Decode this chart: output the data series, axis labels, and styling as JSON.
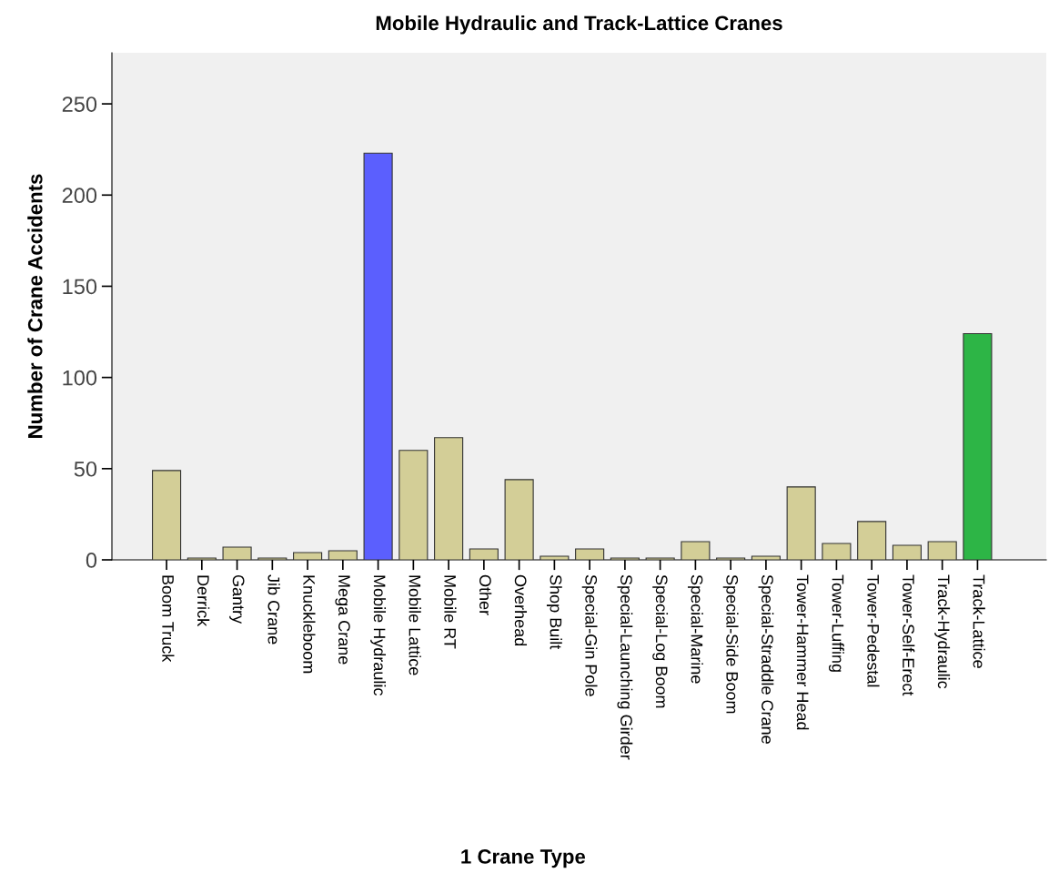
{
  "chart_data": {
    "type": "bar",
    "title": "Mobile Hydraulic and Track-Lattice Cranes",
    "xlabel": "1 Crane Type",
    "ylabel": "Number of Crane Accidents",
    "categories": [
      "Boom Truck",
      "Derrick",
      "Gantry",
      "Jib Crane",
      "Knuckleboom",
      "Mega Crane",
      "Mobile Hydraulic",
      "Mobile Lattice",
      "Mobile RT",
      "Other",
      "Overhead",
      "Shop Built",
      "Special-Gin Pole",
      "Special-Launching Girder",
      "Special-Log Boom",
      "Special-Marine",
      "Special-Side Boom",
      "Special-Straddle Crane",
      "Tower-Hammer Head",
      "Tower-Luffing",
      "Tower-Pedestal",
      "Tower-Self-Erect",
      "Track-Hydraulic",
      "Track-Lattice"
    ],
    "values": [
      49,
      1,
      7,
      1,
      4,
      5,
      223,
      60,
      67,
      6,
      44,
      2,
      6,
      1,
      1,
      10,
      1,
      2,
      40,
      9,
      21,
      8,
      10,
      124
    ],
    "colors": [
      "#d3ce97",
      "#d3ce97",
      "#d3ce97",
      "#d3ce97",
      "#d3ce97",
      "#d3ce97",
      "#5b5ffe",
      "#d3ce97",
      "#d3ce97",
      "#d3ce97",
      "#d3ce97",
      "#d3ce97",
      "#d3ce97",
      "#d3ce97",
      "#d3ce97",
      "#d3ce97",
      "#d3ce97",
      "#d3ce97",
      "#d3ce97",
      "#d3ce97",
      "#d3ce97",
      "#d3ce97",
      "#d3ce97",
      "#2db546"
    ],
    "ylim": [
      0,
      278
    ],
    "yticks": [
      0,
      50,
      100,
      150,
      200,
      250
    ],
    "grid": false,
    "legend": false
  }
}
